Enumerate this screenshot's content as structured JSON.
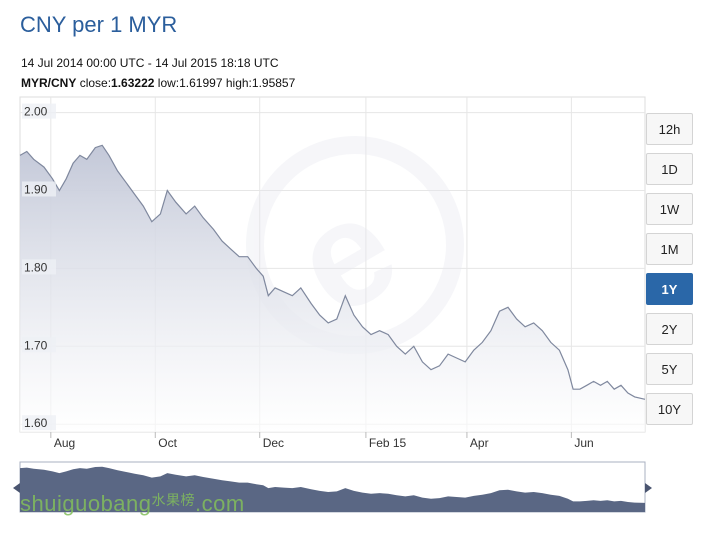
{
  "header": {
    "title": "CNY per 1 MYR",
    "range": "14 Jul 2014 00:00 UTC - 14 Jul 2015 18:18 UTC",
    "pair": "MYR/CNY",
    "close_label": "close:",
    "close_value": "1.63222",
    "low_label": "low:",
    "low_value": "1.61997",
    "high_label": "high:",
    "high_value": "1.95857"
  },
  "periods": [
    {
      "label": "12h",
      "active": false
    },
    {
      "label": "1D",
      "active": false
    },
    {
      "label": "1W",
      "active": false
    },
    {
      "label": "1M",
      "active": false
    },
    {
      "label": "1Y",
      "active": true
    },
    {
      "label": "2Y",
      "active": false
    },
    {
      "label": "5Y",
      "active": false
    },
    {
      "label": "10Y",
      "active": false
    }
  ],
  "watermark": {
    "text": "shuiguobang",
    "cn": "水果榜",
    "suffix": ".com"
  },
  "colors": {
    "line": "#7f889e",
    "area_top": "#c3c8d8",
    "area_bottom": "#ffffff",
    "nav_fill": "#5a6784",
    "title": "#2b5e9c",
    "active_button": "#2a67a8"
  },
  "chart_data": {
    "type": "area",
    "series_pair": "MYR/CNY",
    "ylim": [
      1.59,
      2.02
    ],
    "yticks": [
      1.6,
      1.7,
      1.8,
      1.9,
      2.0
    ],
    "ytick_labels": [
      "1.60",
      "1.70",
      "1.80",
      "1.90",
      "2.00"
    ],
    "x_ticks": [
      {
        "label": "Aug",
        "date": "2014-08-01"
      },
      {
        "label": "Oct",
        "date": "2014-10-01"
      },
      {
        "label": "Dec",
        "date": "2014-12-01"
      },
      {
        "label": "Feb 15",
        "date": "2015-02-01"
      },
      {
        "label": "Apr",
        "date": "2015-04-01"
      },
      {
        "label": "Jun",
        "date": "2015-06-01"
      }
    ],
    "x_start": "2014-07-14",
    "x_end": "2015-07-14",
    "grid": true,
    "points": [
      [
        "2014-07-14",
        1.945
      ],
      [
        "2014-07-18",
        1.95
      ],
      [
        "2014-07-22",
        1.94
      ],
      [
        "2014-07-28",
        1.93
      ],
      [
        "2014-08-02",
        1.915
      ],
      [
        "2014-08-06",
        1.9
      ],
      [
        "2014-08-10",
        1.915
      ],
      [
        "2014-08-14",
        1.935
      ],
      [
        "2014-08-18",
        1.945
      ],
      [
        "2014-08-22",
        1.94
      ],
      [
        "2014-08-27",
        1.955
      ],
      [
        "2014-08-31",
        1.958
      ],
      [
        "2014-09-04",
        1.945
      ],
      [
        "2014-09-09",
        1.925
      ],
      [
        "2014-09-14",
        1.91
      ],
      [
        "2014-09-19",
        1.895
      ],
      [
        "2014-09-24",
        1.88
      ],
      [
        "2014-09-29",
        1.86
      ],
      [
        "2014-10-04",
        1.87
      ],
      [
        "2014-10-08",
        1.9
      ],
      [
        "2014-10-13",
        1.885
      ],
      [
        "2014-10-19",
        1.87
      ],
      [
        "2014-10-24",
        1.88
      ],
      [
        "2014-10-29",
        1.865
      ],
      [
        "2014-11-04",
        1.85
      ],
      [
        "2014-11-09",
        1.835
      ],
      [
        "2014-11-14",
        1.825
      ],
      [
        "2014-11-19",
        1.815
      ],
      [
        "2014-11-24",
        1.815
      ],
      [
        "2014-11-29",
        1.8
      ],
      [
        "2014-12-03",
        1.79
      ],
      [
        "2014-12-06",
        1.765
      ],
      [
        "2014-12-10",
        1.775
      ],
      [
        "2014-12-15",
        1.77
      ],
      [
        "2014-12-20",
        1.765
      ],
      [
        "2014-12-25",
        1.775
      ],
      [
        "2014-12-31",
        1.755
      ],
      [
        "2015-01-05",
        1.74
      ],
      [
        "2015-01-10",
        1.73
      ],
      [
        "2015-01-15",
        1.735
      ],
      [
        "2015-01-20",
        1.765
      ],
      [
        "2015-01-25",
        1.74
      ],
      [
        "2015-01-30",
        1.725
      ],
      [
        "2015-02-04",
        1.715
      ],
      [
        "2015-02-09",
        1.72
      ],
      [
        "2015-02-14",
        1.715
      ],
      [
        "2015-02-19",
        1.7
      ],
      [
        "2015-02-24",
        1.69
      ],
      [
        "2015-03-01",
        1.7
      ],
      [
        "2015-03-06",
        1.68
      ],
      [
        "2015-03-11",
        1.67
      ],
      [
        "2015-03-16",
        1.675
      ],
      [
        "2015-03-21",
        1.69
      ],
      [
        "2015-03-26",
        1.685
      ],
      [
        "2015-03-31",
        1.68
      ],
      [
        "2015-04-05",
        1.695
      ],
      [
        "2015-04-10",
        1.705
      ],
      [
        "2015-04-15",
        1.72
      ],
      [
        "2015-04-20",
        1.745
      ],
      [
        "2015-04-25",
        1.75
      ],
      [
        "2015-04-30",
        1.735
      ],
      [
        "2015-05-05",
        1.725
      ],
      [
        "2015-05-10",
        1.73
      ],
      [
        "2015-05-15",
        1.72
      ],
      [
        "2015-05-20",
        1.705
      ],
      [
        "2015-05-25",
        1.695
      ],
      [
        "2015-05-30",
        1.67
      ],
      [
        "2015-06-02",
        1.645
      ],
      [
        "2015-06-06",
        1.645
      ],
      [
        "2015-06-10",
        1.65
      ],
      [
        "2015-06-14",
        1.655
      ],
      [
        "2015-06-18",
        1.65
      ],
      [
        "2015-06-22",
        1.655
      ],
      [
        "2015-06-26",
        1.645
      ],
      [
        "2015-06-30",
        1.65
      ],
      [
        "2015-07-04",
        1.64
      ],
      [
        "2015-07-08",
        1.635
      ],
      [
        "2015-07-14",
        1.632
      ]
    ]
  }
}
